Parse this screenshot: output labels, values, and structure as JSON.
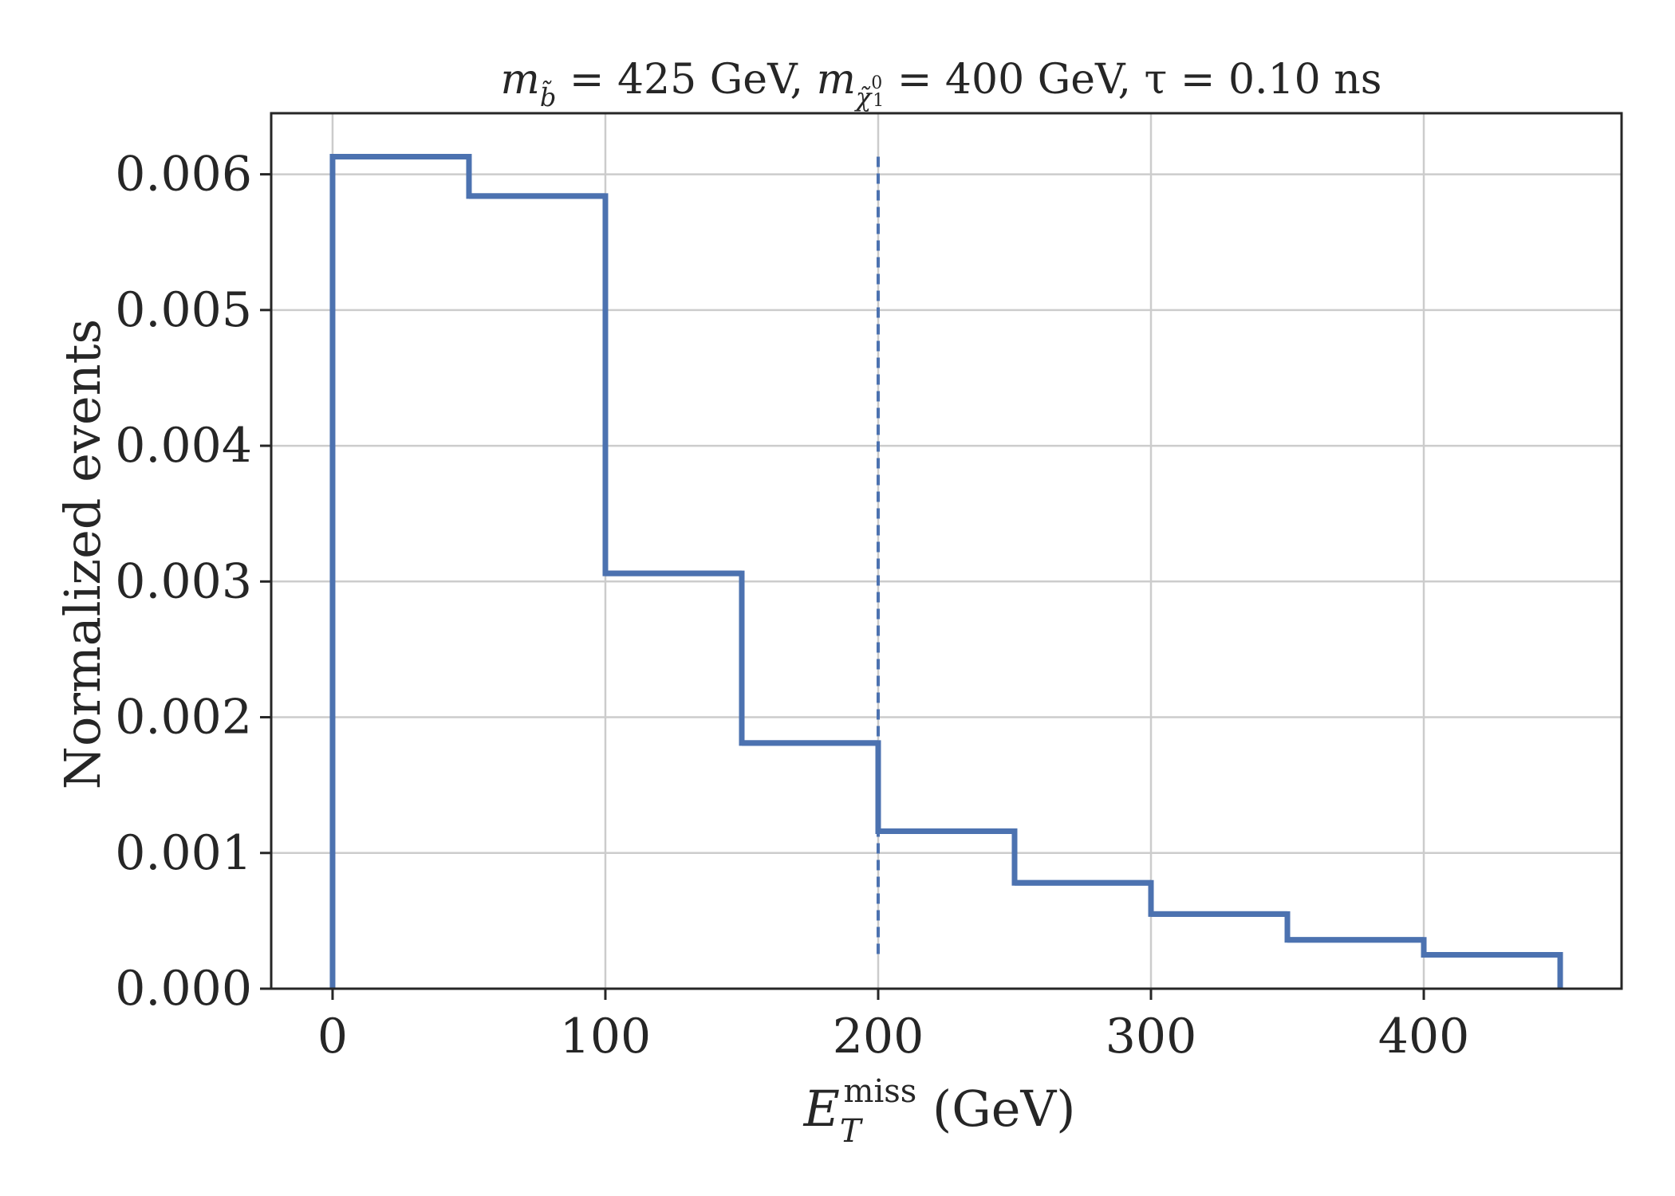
{
  "chart_data": {
    "type": "histogram",
    "title": {
      "m1_base": "m",
      "m1_sub": "b̃",
      "m1_value": " = 425 GeV, ",
      "m2_base": "m",
      "m2_sub": "χ̃",
      "m2_sub_sup": "0",
      "m2_sub_sub": "1",
      "m2_value": " = 400 GeV, ",
      "tau_part": "τ = 0.10 ns"
    },
    "xlabel": {
      "base": "E",
      "sub": "T",
      "sup": "miss",
      "unit": " (GeV)"
    },
    "ylabel": "Normalized events",
    "xlim": [
      -22.5,
      472.5
    ],
    "ylim": [
      0,
      0.00645
    ],
    "x_ticks": [
      0,
      100,
      200,
      300,
      400
    ],
    "x_tick_labels": [
      "0",
      "100",
      "200",
      "300",
      "400"
    ],
    "y_ticks": [
      0,
      0.001,
      0.002,
      0.003,
      0.004,
      0.005,
      0.006
    ],
    "y_tick_labels": [
      "0.000",
      "0.001",
      "0.002",
      "0.003",
      "0.004",
      "0.005",
      "0.006"
    ],
    "bin_edges": [
      0,
      50,
      100,
      150,
      200,
      250,
      300,
      350,
      400,
      450
    ],
    "values": [
      0.00613,
      0.00584,
      0.00306,
      0.00181,
      0.00116,
      0.00078,
      0.00055,
      0.00036,
      0.00025
    ],
    "cut_line": {
      "x": 200,
      "y_range": [
        0.00025,
        0.00613
      ],
      "style": "dashed"
    },
    "grid": true,
    "color": "#4c72b0"
  }
}
